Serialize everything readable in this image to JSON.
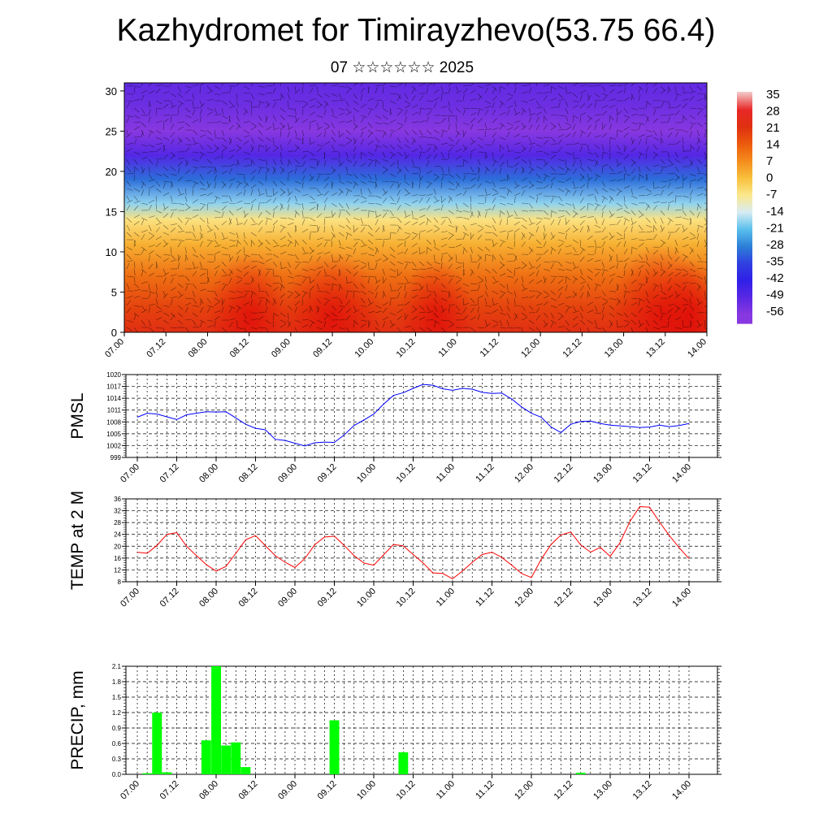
{
  "title": "Kazhydromet for Timirayzhevo(53.75 66.4)",
  "subtitle": "07 ☆☆☆☆☆☆ 2025",
  "x_ticks": [
    "07.00",
    "07.12",
    "08.00",
    "08.12",
    "09.00",
    "09.12",
    "10.00",
    "10.12",
    "11.00",
    "11.12",
    "12.00",
    "12.12",
    "13.00",
    "13.12",
    "14.00"
  ],
  "colorbar": {
    "labels": [
      "35",
      "28",
      "21",
      "14",
      "7",
      "0",
      "-7",
      "-14",
      "-21",
      "-28",
      "-35",
      "-42",
      "-49",
      "-56"
    ],
    "colors": [
      "#f2c4c4",
      "#e82828",
      "#e03010",
      "#ec5a0c",
      "#f48c1c",
      "#f8c03c",
      "#fbe88c",
      "#d8ecf4",
      "#5ac0ec",
      "#2c80d8",
      "#3040e0",
      "#3020e8",
      "#5a28e4",
      "#8838e0"
    ]
  },
  "chart_data": [
    {
      "type": "heatmap",
      "name": "cross-section",
      "y_ticks": [
        "0",
        "5",
        "10",
        "15",
        "20",
        "25",
        "30"
      ],
      "ylim": [
        0,
        31
      ],
      "xlim": [
        0,
        14
      ],
      "profile_temperature_by_height": [
        {
          "height": 0,
          "temp": 22
        },
        {
          "height": 3,
          "temp": 18
        },
        {
          "height": 7,
          "temp": 11
        },
        {
          "height": 11,
          "temp": 2
        },
        {
          "height": 14,
          "temp": -6
        },
        {
          "height": 16,
          "temp": -18
        },
        {
          "height": 19,
          "temp": -30
        },
        {
          "height": 22,
          "temp": -48
        },
        {
          "height": 25,
          "temp": -56
        },
        {
          "height": 28,
          "temp": -52
        },
        {
          "height": 31,
          "temp": -50
        }
      ]
    },
    {
      "type": "line",
      "name": "pmsl",
      "ylabel": "PMSL",
      "y_ticks": [
        "999",
        "1002",
        "1005",
        "1008",
        "1011",
        "1014",
        "1017",
        "1020"
      ],
      "ylim": [
        999,
        1020
      ],
      "xlim": [
        0,
        14
      ],
      "color": "#0000ff",
      "x": [
        0,
        0.25,
        0.5,
        0.75,
        1,
        1.25,
        1.5,
        1.75,
        2,
        2.25,
        2.5,
        2.75,
        3,
        3.25,
        3.5,
        3.75,
        4,
        4.25,
        4.5,
        4.75,
        5,
        5.25,
        5.5,
        5.75,
        6,
        6.25,
        6.5,
        6.75,
        7,
        7.25,
        7.5,
        7.75,
        8,
        8.25,
        8.5,
        8.75,
        9,
        9.25,
        9.5,
        9.75,
        10,
        10.25,
        10.5,
        10.75,
        11,
        11.25,
        11.5,
        11.75,
        12,
        12.25,
        12.5,
        12.75,
        13,
        13.25,
        13.5,
        13.75,
        14
      ],
      "y": [
        1009.2,
        1010.2,
        1010,
        1009.3,
        1008.6,
        1009.8,
        1010.2,
        1010.6,
        1010.5,
        1010.6,
        1009,
        1007.4,
        1006.4,
        1006,
        1003.6,
        1003.3,
        1002.6,
        1001.9,
        1002.7,
        1002.9,
        1002.8,
        1004.7,
        1007.1,
        1008.5,
        1010,
        1012.5,
        1014.7,
        1015.4,
        1016.5,
        1017.5,
        1017.3,
        1016.4,
        1016,
        1016.5,
        1016.3,
        1015.5,
        1015.2,
        1015.3,
        1013.8,
        1011.8,
        1010.2,
        1009.2,
        1006.7,
        1005.3,
        1007.4,
        1008.1,
        1008.2,
        1007.6,
        1007.2,
        1007.0,
        1006.8,
        1006.6,
        1006.7,
        1007.2,
        1006.8,
        1007.1,
        1007.6
      ]
    },
    {
      "type": "line",
      "name": "temp-2m",
      "ylabel": "TEMP at 2 M",
      "y_ticks": [
        "8",
        "12",
        "16",
        "20",
        "24",
        "28",
        "32",
        "36"
      ],
      "ylim": [
        8,
        36
      ],
      "xlim": [
        0,
        14
      ],
      "color": "#ff0000",
      "x": [
        0,
        0.25,
        0.5,
        0.75,
        1,
        1.25,
        1.5,
        1.75,
        2,
        2.25,
        2.5,
        2.75,
        3,
        3.25,
        3.5,
        3.75,
        4,
        4.25,
        4.5,
        4.75,
        5,
        5.25,
        5.5,
        5.75,
        6,
        6.25,
        6.5,
        6.75,
        7,
        7.25,
        7.5,
        7.75,
        8,
        8.25,
        8.5,
        8.75,
        9,
        9.25,
        9.5,
        9.75,
        10,
        10.25,
        10.5,
        10.75,
        11,
        11.25,
        11.5,
        11.75,
        12,
        12.25,
        12.5,
        12.75,
        13,
        13.25,
        13.5,
        13.75,
        14
      ],
      "y": [
        18,
        17.6,
        20.3,
        24,
        24.6,
        20,
        16.8,
        13.8,
        11.6,
        13.2,
        17.6,
        22.2,
        23.6,
        20.2,
        16.8,
        14.6,
        12.8,
        15.8,
        20.5,
        23.1,
        23.4,
        20.3,
        16.8,
        14.3,
        13.6,
        17.1,
        20.6,
        20.1,
        17.2,
        14.4,
        11,
        10.8,
        9,
        11.6,
        14.6,
        17.2,
        18,
        16.2,
        13.6,
        10.8,
        9.4,
        15.6,
        20.6,
        23.8,
        24.8,
        20.5,
        18,
        19.6,
        16.6,
        21.2,
        28.4,
        33.4,
        33.2,
        28.2,
        23.6,
        19.5,
        15.8
      ]
    },
    {
      "type": "bar",
      "name": "precip",
      "ylabel": "PRECIP, mm",
      "y_ticks": [
        "0.0",
        "0.3",
        "0.6",
        "0.9",
        "1.2",
        "1.5",
        "1.8",
        "2.1"
      ],
      "ylim": [
        0,
        2.1
      ],
      "xlim": [
        0,
        14
      ],
      "color": "#00ff00",
      "bar_width": 0.25,
      "x": [
        0.25,
        0.5,
        0.75,
        1.75,
        2,
        2.25,
        2.5,
        2.75,
        5,
        6.75,
        11.25
      ],
      "values": [
        0.02,
        1.2,
        0.04,
        0.66,
        2.1,
        0.56,
        0.62,
        0.14,
        1.05,
        0.43,
        0.03
      ]
    }
  ]
}
